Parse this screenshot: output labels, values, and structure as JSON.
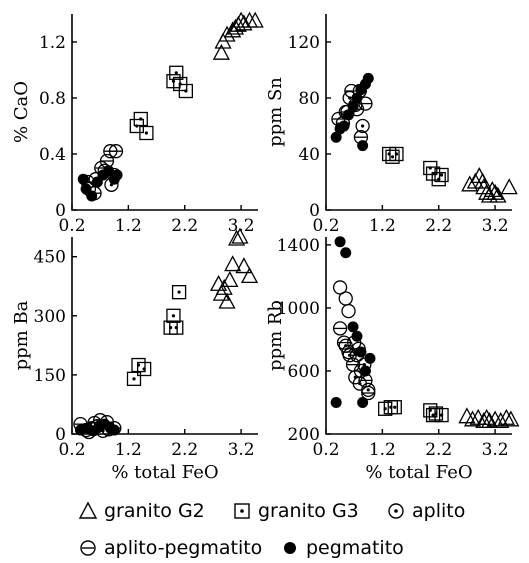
{
  "chart_data": [
    {
      "type": "scatter",
      "id": "cao",
      "ylabel": "% CaO",
      "xlabel": "",
      "xlim": [
        0.2,
        3.5
      ],
      "ylim": [
        0,
        1.4
      ],
      "xticks": [
        "0.2",
        "1.2",
        "2.2",
        "3.2"
      ],
      "xtick_values": [
        0.2,
        1.2,
        2.2,
        3.2
      ],
      "yticks": [
        "0",
        "0.4",
        "0.8",
        "1.2"
      ],
      "ytick_values": [
        0,
        0.4,
        0.8,
        1.2
      ],
      "series": [
        {
          "name": "granito G2",
          "marker": "triangle",
          "points": [
            [
              2.85,
              1.12
            ],
            [
              2.88,
              1.2
            ],
            [
              2.95,
              1.25
            ],
            [
              3.05,
              1.28
            ],
            [
              3.15,
              1.32
            ],
            [
              3.2,
              1.35
            ],
            [
              3.25,
              1.33
            ],
            [
              3.35,
              1.35
            ],
            [
              3.45,
              1.35
            ],
            [
              3.1,
              1.3
            ]
          ]
        },
        {
          "name": "granito G3",
          "marker": "square",
          "points": [
            [
              1.35,
              0.6
            ],
            [
              1.42,
              0.65
            ],
            [
              1.52,
              0.55
            ],
            [
              2.0,
              0.92
            ],
            [
              2.05,
              0.98
            ],
            [
              2.12,
              0.9
            ],
            [
              2.22,
              0.85
            ]
          ]
        },
        {
          "name": "aplito",
          "marker": "circle-dot",
          "points": [
            [
              0.5,
              0.15
            ],
            [
              0.62,
              0.22
            ],
            [
              0.78,
              0.28
            ],
            [
              0.9,
              0.18
            ],
            [
              0.95,
              0.25
            ]
          ]
        },
        {
          "name": "aplito-pegmatito",
          "marker": "circle-bar",
          "points": [
            [
              0.48,
              0.2
            ],
            [
              0.6,
              0.12
            ],
            [
              0.72,
              0.3
            ],
            [
              0.82,
              0.35
            ],
            [
              0.88,
              0.42
            ],
            [
              0.98,
              0.42
            ]
          ]
        },
        {
          "name": "pegmatito",
          "marker": "filled-circle",
          "points": [
            [
              0.4,
              0.22
            ],
            [
              0.45,
              0.15
            ],
            [
              0.55,
              0.1
            ],
            [
              0.65,
              0.2
            ],
            [
              0.75,
              0.25
            ],
            [
              0.85,
              0.28
            ],
            [
              0.95,
              0.22
            ],
            [
              1.0,
              0.25
            ]
          ]
        }
      ]
    },
    {
      "type": "scatter",
      "id": "sn",
      "ylabel": "ppm Sn",
      "xlabel": "",
      "xlim": [
        0.2,
        3.5
      ],
      "ylim": [
        0,
        140
      ],
      "xticks": [
        "0.2",
        "1.2",
        "2.2",
        "3.2"
      ],
      "xtick_values": [
        0.2,
        1.2,
        2.2,
        3.2
      ],
      "yticks": [
        "0",
        "40",
        "80",
        "120"
      ],
      "ytick_values": [
        0,
        40,
        80,
        120
      ],
      "series": [
        {
          "name": "granito G2",
          "marker": "triangle",
          "points": [
            [
              2.75,
              18
            ],
            [
              2.85,
              20
            ],
            [
              2.92,
              24
            ],
            [
              3.0,
              16
            ],
            [
              3.05,
              12
            ],
            [
              3.1,
              10
            ],
            [
              3.15,
              14
            ],
            [
              3.2,
              12
            ],
            [
              3.25,
              10
            ],
            [
              3.45,
              16
            ],
            [
              2.98,
              20
            ]
          ]
        },
        {
          "name": "granito G3",
          "marker": "square",
          "points": [
            [
              1.32,
              40
            ],
            [
              1.38,
              38
            ],
            [
              1.45,
              40
            ],
            [
              2.05,
              30
            ],
            [
              2.1,
              26
            ],
            [
              2.2,
              22
            ],
            [
              2.25,
              25
            ]
          ]
        },
        {
          "name": "aplito",
          "marker": "circle-dot",
          "points": [
            [
              0.55,
              70
            ],
            [
              0.62,
              80
            ],
            [
              0.72,
              75
            ],
            [
              0.8,
              85
            ],
            [
              0.85,
              60
            ]
          ]
        },
        {
          "name": "aplito-pegmatito",
          "marker": "circle-bar",
          "points": [
            [
              0.42,
              65
            ],
            [
              0.5,
              62
            ],
            [
              0.58,
              70
            ],
            [
              0.65,
              85
            ],
            [
              0.75,
              72
            ],
            [
              0.82,
              52
            ],
            [
              0.9,
              76
            ]
          ]
        },
        {
          "name": "pegmatito",
          "marker": "filled-circle",
          "points": [
            [
              0.38,
              52
            ],
            [
              0.45,
              58
            ],
            [
              0.52,
              60
            ],
            [
              0.6,
              68
            ],
            [
              0.68,
              74
            ],
            [
              0.75,
              80
            ],
            [
              0.82,
              86
            ],
            [
              0.9,
              90
            ],
            [
              0.95,
              94
            ],
            [
              0.85,
              46
            ]
          ]
        }
      ]
    },
    {
      "type": "scatter",
      "id": "ba",
      "ylabel": "ppm Ba",
      "xlabel": "% total FeO",
      "xlim": [
        0.2,
        3.5
      ],
      "ylim": [
        0,
        500
      ],
      "xticks": [
        "0.2",
        "1.2",
        "2.2",
        "3.2"
      ],
      "xtick_values": [
        0.2,
        1.2,
        2.2,
        3.2
      ],
      "yticks": [
        "0",
        "150",
        "300",
        "450"
      ],
      "ytick_values": [
        0,
        150,
        300,
        450
      ],
      "series": [
        {
          "name": "granito G2",
          "marker": "triangle",
          "points": [
            [
              2.8,
              380
            ],
            [
              2.85,
              355
            ],
            [
              2.9,
              370
            ],
            [
              2.95,
              335
            ],
            [
              3.05,
              430
            ],
            [
              3.12,
              495
            ],
            [
              3.18,
              500
            ],
            [
              3.25,
              425
            ],
            [
              3.35,
              400
            ],
            [
              3.0,
              390
            ]
          ]
        },
        {
          "name": "granito G3",
          "marker": "square",
          "points": [
            [
              1.3,
              140
            ],
            [
              1.38,
              175
            ],
            [
              1.48,
              165
            ],
            [
              1.95,
              270
            ],
            [
              2.0,
              300
            ],
            [
              2.05,
              270
            ],
            [
              2.1,
              360
            ]
          ]
        },
        {
          "name": "aplito",
          "marker": "circle-dot",
          "points": [
            [
              0.45,
              10
            ],
            [
              0.55,
              15
            ],
            [
              0.65,
              20
            ],
            [
              0.75,
              8
            ],
            [
              0.85,
              12
            ]
          ]
        },
        {
          "name": "aplito-pegmatito",
          "marker": "circle-bar",
          "points": [
            [
              0.35,
              25
            ],
            [
              0.5,
              5
            ],
            [
              0.6,
              28
            ],
            [
              0.7,
              35
            ],
            [
              0.82,
              30
            ],
            [
              0.95,
              15
            ]
          ]
        },
        {
          "name": "pegmatito",
          "marker": "filled-circle",
          "points": [
            [
              0.35,
              10
            ],
            [
              0.48,
              15
            ],
            [
              0.58,
              8
            ],
            [
              0.68,
              20
            ],
            [
              0.78,
              25
            ],
            [
              0.88,
              15
            ],
            [
              0.95,
              10
            ]
          ]
        }
      ]
    },
    {
      "type": "scatter",
      "id": "rb",
      "ylabel": "ppm Rb",
      "xlabel": "% total FeO",
      "xlim": [
        0.2,
        3.5
      ],
      "ylim": [
        200,
        1450
      ],
      "xticks": [
        "0.2",
        "1.2",
        "2.2",
        "3.2"
      ],
      "xtick_values": [
        0.2,
        1.2,
        2.2,
        3.2
      ],
      "yticks": [
        "200",
        "600",
        "1000",
        "1400"
      ],
      "ytick_values": [
        200,
        600,
        1000,
        1400
      ],
      "series": [
        {
          "name": "granito G2",
          "marker": "triangle",
          "points": [
            [
              2.7,
              310
            ],
            [
              2.8,
              290
            ],
            [
              2.9,
              300
            ],
            [
              3.0,
              280
            ],
            [
              3.05,
              300
            ],
            [
              3.1,
              280
            ],
            [
              3.2,
              290
            ],
            [
              3.3,
              280
            ],
            [
              3.4,
              300
            ],
            [
              3.48,
              290
            ]
          ]
        },
        {
          "name": "granito G3",
          "marker": "square",
          "points": [
            [
              1.25,
              360
            ],
            [
              1.35,
              370
            ],
            [
              1.42,
              370
            ],
            [
              2.05,
              350
            ],
            [
              2.1,
              320
            ],
            [
              2.15,
              330
            ],
            [
              2.25,
              320
            ]
          ]
        },
        {
          "name": "aplito",
          "marker": "circle-dot",
          "points": [
            [
              0.55,
              760
            ],
            [
              0.62,
              700
            ],
            [
              0.72,
              560
            ],
            [
              0.8,
              520
            ],
            [
              0.88,
              640
            ],
            [
              0.95,
              480
            ]
          ]
        },
        {
          "name": "aplito-pegmatito",
          "marker": "circle-bar",
          "points": [
            [
              0.45,
              870
            ],
            [
              0.52,
              780
            ],
            [
              0.6,
              720
            ],
            [
              0.68,
              640
            ],
            [
              0.75,
              700
            ],
            [
              0.82,
              600
            ],
            [
              0.9,
              540
            ],
            [
              0.95,
              460
            ]
          ]
        },
        {
          "name": "pegmatito",
          "marker": "filled-circle",
          "points": [
            [
              0.38,
              400
            ],
            [
              0.45,
              1420
            ],
            [
              0.55,
              1350
            ],
            [
              0.68,
              880
            ],
            [
              0.75,
              820
            ],
            [
              0.82,
              720
            ],
            [
              0.9,
              600
            ],
            [
              0.98,
              680
            ],
            [
              0.85,
              400
            ]
          ]
        }
      ],
      "extra_points": [
        {
          "marker": "circle",
          "points": [
            [
              0.45,
              1130
            ],
            [
              0.55,
              1060
            ],
            [
              0.6,
              980
            ],
            [
              0.7,
              780
            ],
            [
              0.78,
              740
            ]
          ]
        }
      ]
    }
  ],
  "legend": {
    "items": [
      {
        "label": "granito G2",
        "marker": "triangle"
      },
      {
        "label": "granito G3",
        "marker": "square"
      },
      {
        "label": "aplito",
        "marker": "circle-dot"
      },
      {
        "label": "aplito-pegmatito",
        "marker": "circle-bar"
      },
      {
        "label": "pegmatito",
        "marker": "filled-circle"
      }
    ]
  }
}
